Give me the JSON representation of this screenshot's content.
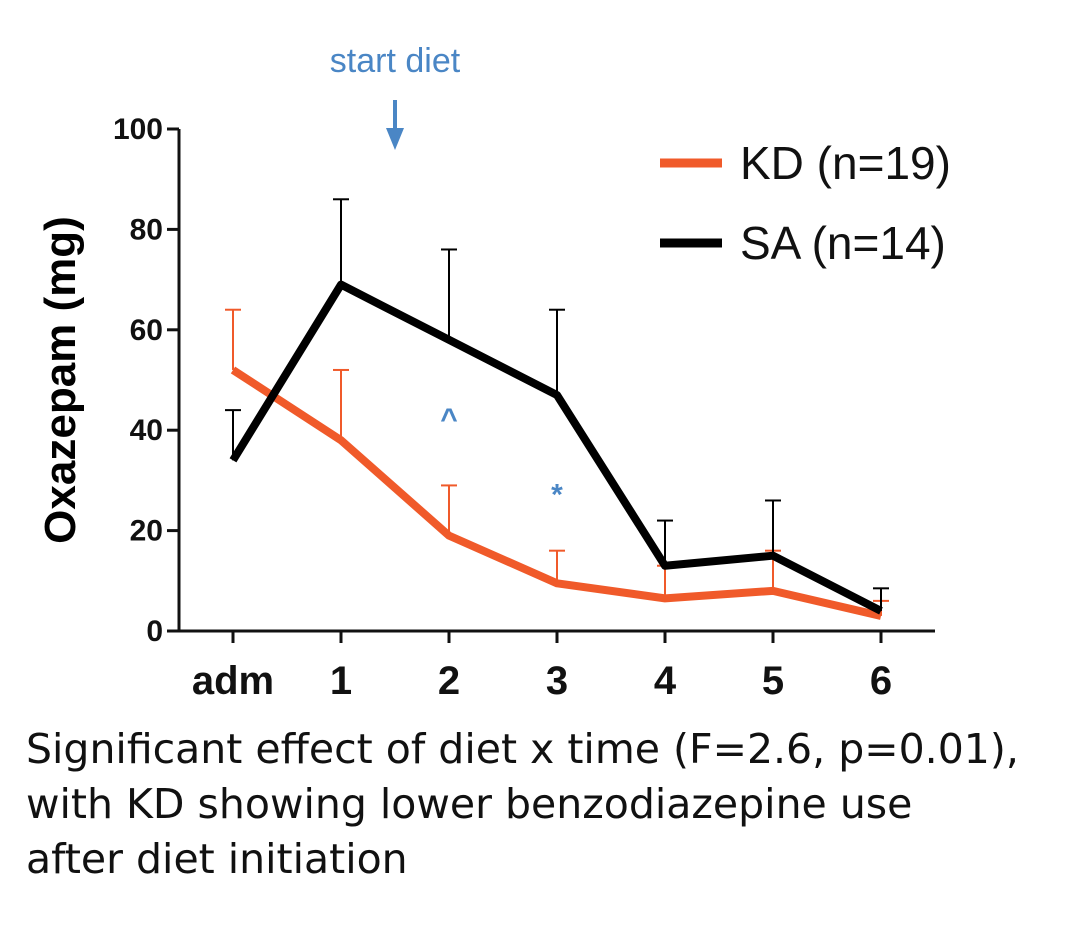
{
  "chart_data": {
    "type": "line",
    "title": "",
    "xlabel": "",
    "ylabel": "Oxazepam (mg)",
    "categories": [
      "adm",
      "1",
      "2",
      "3",
      "4",
      "5",
      "6"
    ],
    "ylim": [
      0,
      100
    ],
    "yticks": [
      "0",
      "20",
      "40",
      "60",
      "80",
      "100"
    ],
    "series": [
      {
        "name": "KD (n=19)",
        "color": "#f05a2a",
        "values": [
          52,
          38,
          19,
          9.5,
          6.5,
          8,
          3
        ],
        "error_upper": [
          64,
          52,
          29,
          16,
          13,
          16,
          6
        ]
      },
      {
        "name": "SA (n=14)",
        "color": "#000000",
        "values": [
          34,
          69,
          58,
          47,
          13,
          15,
          4
        ],
        "error_upper": [
          44,
          86,
          76,
          64,
          22,
          26,
          8.5
        ]
      }
    ],
    "legend_position": "top-right",
    "annotations": [
      {
        "text": "start diet",
        "color": "#4a86c5",
        "at_x": 1.5,
        "kind": "arrow"
      },
      {
        "text": "^",
        "color": "#4a86c5",
        "at_x": 2,
        "y": 43
      },
      {
        "text": "*",
        "color": "#4a86c5",
        "at_x": 3,
        "y": 28
      }
    ]
  },
  "caption": {
    "line1": "Significant effect of diet x time (F=2.6, p=0.01),",
    "line2": "with KD showing lower benzodiazepine use",
    "line3": "after diet initiation"
  }
}
